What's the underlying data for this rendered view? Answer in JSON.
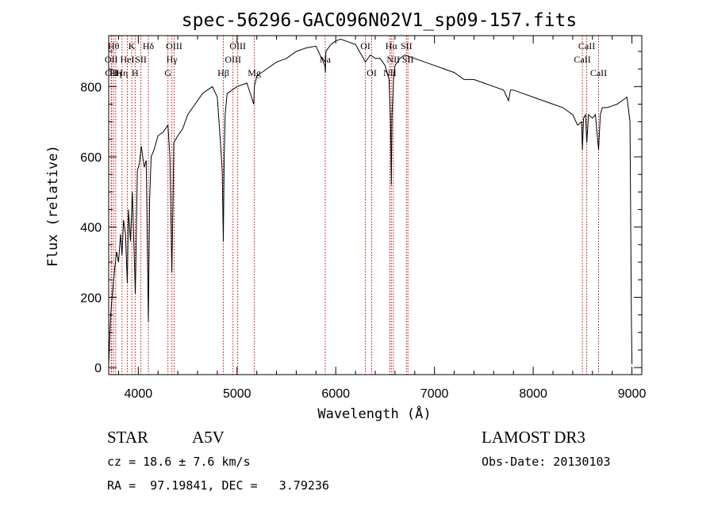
{
  "chart_data": {
    "type": "line",
    "title": "spec-56296-GAC096N02V1_sp09-157.fits",
    "xlabel": "Wavelength (Å)",
    "ylabel": "Flux (relative)",
    "xlim": [
      3700,
      9100
    ],
    "ylim": [
      -20,
      945
    ],
    "xticks": [
      4000,
      5000,
      6000,
      7000,
      8000,
      9000
    ],
    "yticks": [
      0,
      200,
      400,
      600,
      800
    ],
    "grid": false,
    "line_color": "#000000",
    "marker_color": "#cc0000",
    "series": [
      {
        "x": [
          3700,
          3720,
          3740,
          3760,
          3780,
          3800,
          3820,
          3835,
          3850,
          3870,
          3889,
          3900,
          3920,
          3940,
          3970,
          3990,
          4010,
          4030,
          4060,
          4080,
          4102,
          4115,
          4130,
          4160,
          4200,
          4250,
          4300,
          4320,
          4340,
          4350,
          4360,
          4380,
          4400,
          4450,
          4500,
          4550,
          4600,
          4650,
          4700,
          4750,
          4800,
          4830,
          4850,
          4861,
          4870,
          4880,
          4900,
          4950,
          5000,
          5100,
          5170,
          5175,
          5200,
          5300,
          5400,
          5500,
          5600,
          5700,
          5800,
          5890,
          5895,
          5900,
          5950,
          6000,
          6050,
          6100,
          6200,
          6280,
          6300,
          6350,
          6400,
          6450,
          6500,
          6540,
          6555,
          6563,
          6570,
          6585,
          6600,
          6650,
          6700,
          6800,
          6900,
          7000,
          7100,
          7200,
          7300,
          7400,
          7500,
          7600,
          7700,
          7750,
          7770,
          7800,
          7900,
          8000,
          8100,
          8200,
          8300,
          8400,
          8450,
          8490,
          8498,
          8510,
          8530,
          8542,
          8560,
          8600,
          8630,
          8662,
          8680,
          8700,
          8750,
          8800,
          8850,
          8900,
          8950,
          8980,
          8995,
          9000
        ],
        "y": [
          10,
          150,
          220,
          280,
          330,
          300,
          380,
          320,
          420,
          380,
          240,
          450,
          360,
          500,
          210,
          560,
          580,
          630,
          570,
          590,
          130,
          480,
          600,
          620,
          660,
          670,
          690,
          600,
          270,
          450,
          640,
          650,
          660,
          680,
          720,
          740,
          760,
          780,
          790,
          800,
          770,
          650,
          560,
          360,
          600,
          720,
          780,
          790,
          800,
          810,
          750,
          800,
          830,
          850,
          870,
          880,
          900,
          910,
          915,
          860,
          840,
          900,
          920,
          930,
          935,
          930,
          920,
          880,
          870,
          890,
          880,
          880,
          860,
          820,
          700,
          520,
          720,
          820,
          860,
          880,
          890,
          880,
          870,
          860,
          850,
          840,
          820,
          820,
          810,
          800,
          790,
          760,
          790,
          790,
          780,
          770,
          760,
          750,
          740,
          720,
          690,
          700,
          620,
          710,
          720,
          640,
          720,
          710,
          720,
          620,
          720,
          740,
          740,
          745,
          750,
          760,
          770,
          700,
          130,
          10
        ]
      }
    ],
    "markers": [
      {
        "wl": 3750,
        "label": "Hθ",
        "row": 0
      },
      {
        "wl": 3726,
        "label": "OII",
        "row": 1
      },
      {
        "wl": 3730,
        "label": "OII",
        "row": 2
      },
      {
        "wl": 3771,
        "label": "Hη",
        "row": 2
      },
      {
        "wl": 3835,
        "label": "Hη",
        "row": 2
      },
      {
        "wl": 3889,
        "label": "HeI",
        "row": 1
      },
      {
        "wl": 3934,
        "label": "K",
        "row": 0
      },
      {
        "wl": 3968,
        "label": "H",
        "row": 2
      },
      {
        "wl": 4026,
        "label": "SII",
        "row": 1
      },
      {
        "wl": 4102,
        "label": "Hδ",
        "row": 0
      },
      {
        "wl": 4300,
        "label": "G",
        "row": 2
      },
      {
        "wl": 4340,
        "label": "Hγ",
        "row": 1
      },
      {
        "wl": 4363,
        "label": "OIII",
        "row": 0
      },
      {
        "wl": 4861,
        "label": "Hβ",
        "row": 2
      },
      {
        "wl": 4959,
        "label": "OIII",
        "row": 1
      },
      {
        "wl": 5007,
        "label": "OIII",
        "row": 0
      },
      {
        "wl": 5175,
        "label": "Mg",
        "row": 2
      },
      {
        "wl": 5893,
        "label": "Na",
        "row": 1
      },
      {
        "wl": 6300,
        "label": "OI",
        "row": 0
      },
      {
        "wl": 6364,
        "label": "OI",
        "row": 2
      },
      {
        "wl": 6548,
        "label": "NII",
        "row": 2
      },
      {
        "wl": 6563,
        "label": "Hα",
        "row": 0
      },
      {
        "wl": 6583,
        "label": "NII",
        "row": 1
      },
      {
        "wl": 6716,
        "label": "SII",
        "row": 0
      },
      {
        "wl": 6731,
        "label": "SII",
        "row": 1
      },
      {
        "wl": 8498,
        "label": "CaII",
        "row": 1
      },
      {
        "wl": 8542,
        "label": "CaII",
        "row": 0
      },
      {
        "wl": 8662,
        "label": "CaII",
        "row": 2
      }
    ]
  },
  "info": {
    "object_class": "STAR",
    "subclass": "A5V",
    "survey": "LAMOST DR3",
    "cz": "cz = 18.6 ± 7.6 km/s",
    "obs_date": "Obs-Date: 20130103",
    "coords": "RA =  97.19841, DEC =   3.79236"
  }
}
